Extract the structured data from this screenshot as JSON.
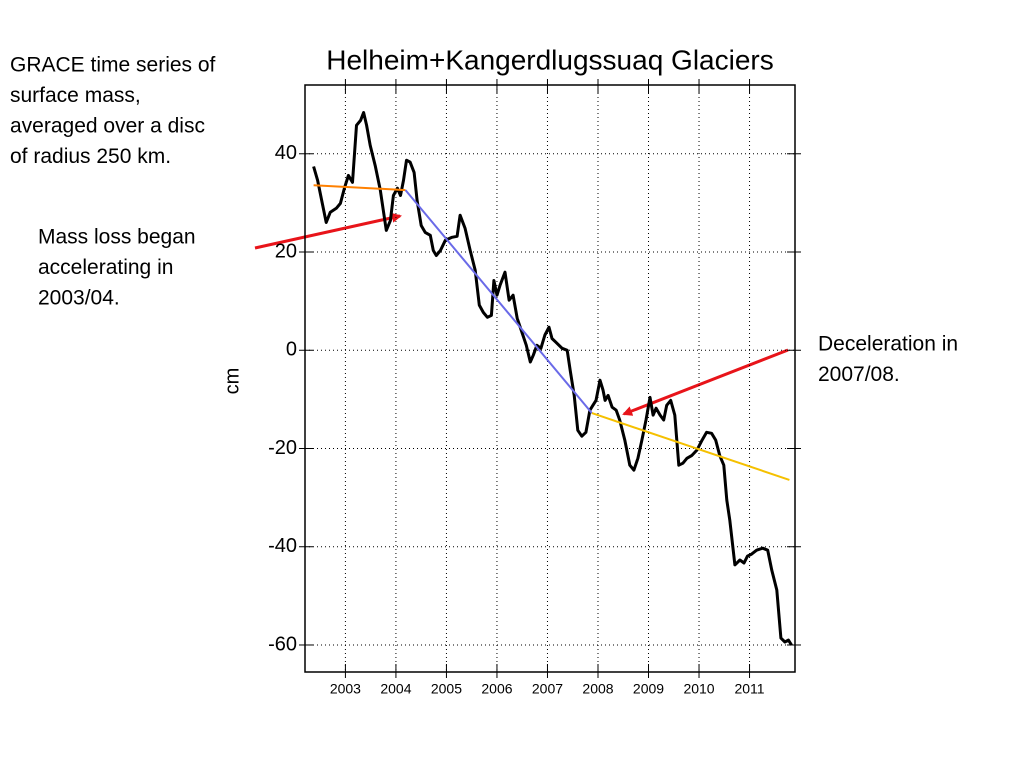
{
  "chart_data": {
    "type": "line",
    "title": "Helheim+Kangerdlugssuaq Glaciers",
    "ylabel": "cm",
    "xlim": [
      2002.2,
      2011.9
    ],
    "ylim": [
      -65.5,
      54
    ],
    "xticks": [
      2003,
      2004,
      2005,
      2006,
      2007,
      2008,
      2009,
      2010,
      2011
    ],
    "yticks": [
      40,
      20,
      0,
      -20,
      -40,
      -60
    ],
    "grid": true,
    "series": [
      {
        "color": "#000000",
        "x": [
          2002.37,
          2002.45,
          2002.55,
          2002.62,
          2002.7,
          2002.82,
          2002.9,
          2002.98,
          2003.06,
          2003.14,
          2003.22,
          2003.3,
          2003.36,
          2003.42,
          2003.49,
          2003.59,
          2003.69,
          2003.75,
          2003.81,
          2003.89,
          2003.95,
          2004.03,
          2004.09,
          2004.15,
          2004.21,
          2004.28,
          2004.36,
          2004.42,
          2004.5,
          2004.58,
          2004.68,
          2004.74,
          2004.8,
          2004.88,
          2004.98,
          2005.11,
          2005.21,
          2005.27,
          2005.37,
          2005.47,
          2005.57,
          2005.65,
          2005.73,
          2005.81,
          2005.89,
          2005.94,
          2006.0,
          2006.06,
          2006.16,
          2006.24,
          2006.32,
          2006.4,
          2006.48,
          2006.58,
          2006.66,
          2006.72,
          2006.79,
          2006.87,
          2006.95,
          2007.03,
          2007.09,
          2007.17,
          2007.29,
          2007.39,
          2007.45,
          2007.53,
          2007.6,
          2007.68,
          2007.76,
          2007.84,
          2007.9,
          2007.96,
          2008.04,
          2008.1,
          2008.14,
          2008.2,
          2008.28,
          2008.36,
          2008.43,
          2008.53,
          2008.63,
          2008.71,
          2008.79,
          2008.87,
          2008.95,
          2009.03,
          2009.09,
          2009.15,
          2009.23,
          2009.3,
          2009.36,
          2009.44,
          2009.52,
          2009.6,
          2009.68,
          2009.76,
          2009.86,
          2009.96,
          2010.06,
          2010.15,
          2010.25,
          2010.33,
          2010.41,
          2010.49,
          2010.55,
          2010.61,
          2010.71,
          2010.81,
          2010.89,
          2010.96,
          2011.04,
          2011.14,
          2011.26,
          2011.36,
          2011.44,
          2011.54,
          2011.62,
          2011.7,
          2011.77,
          2011.83
        ],
        "values": [
          37.4,
          34.6,
          29.5,
          26.0,
          28.1,
          28.9,
          29.9,
          33.0,
          35.6,
          34.2,
          45.8,
          46.8,
          48.4,
          45.8,
          41.7,
          37.6,
          32.6,
          28.5,
          24.4,
          26.4,
          31.5,
          33.0,
          31.5,
          34.6,
          38.7,
          38.3,
          36.2,
          30.5,
          25.4,
          24.0,
          23.4,
          20.3,
          19.3,
          20.3,
          22.4,
          23.0,
          23.2,
          27.5,
          24.8,
          20.3,
          16.3,
          9.2,
          7.7,
          6.7,
          7.1,
          14.2,
          11.2,
          13.2,
          15.9,
          10.2,
          11.2,
          6.5,
          4.1,
          1.0,
          -2.4,
          -1.0,
          1.0,
          0.4,
          3.1,
          4.7,
          2.4,
          1.6,
          0.4,
          0,
          -4.1,
          -9.2,
          -16.3,
          -17.5,
          -16.7,
          -12.2,
          -11.2,
          -10.2,
          -6.1,
          -8.1,
          -10.2,
          -9.2,
          -11.6,
          -12.2,
          -14.2,
          -18.3,
          -23.4,
          -24.4,
          -22.0,
          -18.3,
          -14.2,
          -9.6,
          -13.2,
          -11.8,
          -13.2,
          -14.2,
          -11.2,
          -10.2,
          -13.2,
          -23.4,
          -23.0,
          -22.0,
          -21.4,
          -20.3,
          -18.3,
          -16.7,
          -16.9,
          -18.3,
          -21.4,
          -23.4,
          -30.5,
          -34.6,
          -43.7,
          -42.7,
          -43.3,
          -41.9,
          -41.5,
          -40.7,
          -40.3,
          -40.7,
          -44.8,
          -48.8,
          -58.6,
          -59.4,
          -59.0,
          -60.0
        ]
      },
      {
        "color": "#ff8000",
        "x": [
          2002.37,
          2004.19
        ],
        "values": [
          33.6,
          32.6
        ]
      },
      {
        "color": "#6a6ae8",
        "x": [
          2004.19,
          2007.88
        ],
        "values": [
          32.6,
          -12.8
        ]
      },
      {
        "color": "#f5c000",
        "x": [
          2007.88,
          2011.79
        ],
        "values": [
          -12.8,
          -26.4
        ]
      }
    ],
    "annotations": [
      {
        "lines": [
          "GRACE time series of",
          "surface mass,",
          "averaged over a disc",
          "of radius 250 km."
        ]
      },
      {
        "lines": [
          "Mass loss began",
          "accelerating in",
          "2003/04."
        ]
      },
      {
        "lines": [
          "Deceleration in",
          "2007/08."
        ]
      }
    ]
  }
}
